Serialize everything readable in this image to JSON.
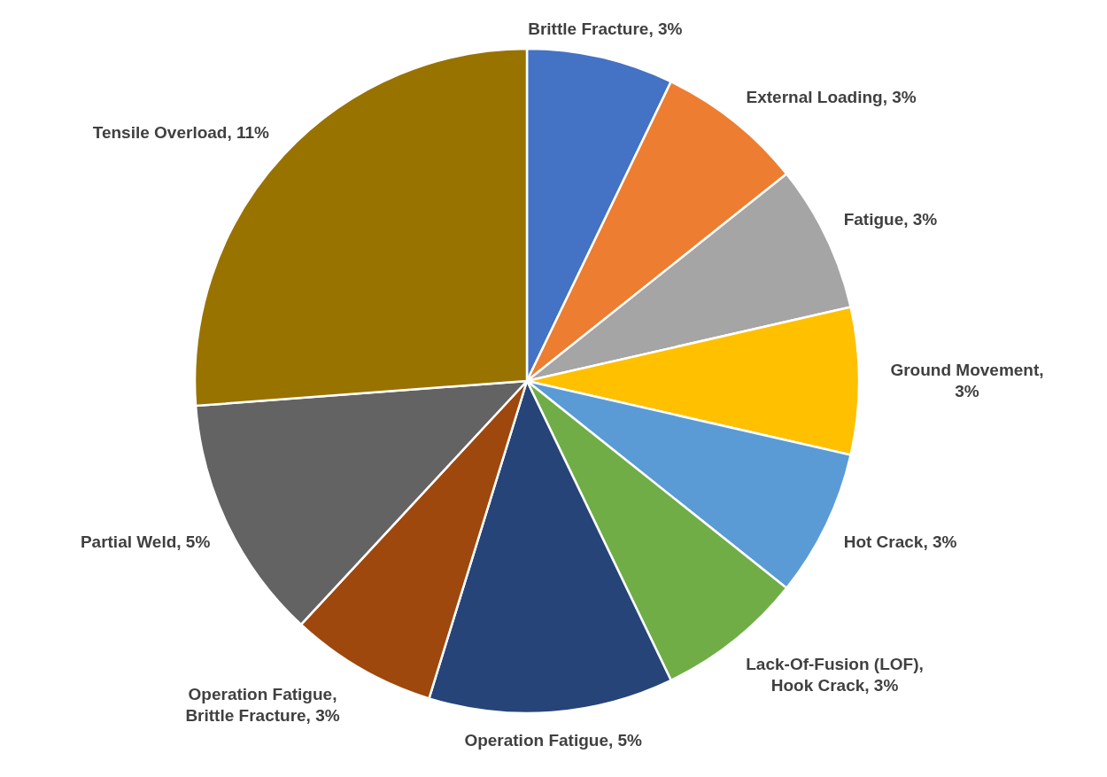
{
  "chart_data": {
    "type": "pie",
    "categories": [
      "Brittle Fracture, 3%",
      "External Loading, 3%",
      "Fatigue, 3%",
      "Ground Movement, 3%",
      "Hot Crack, 3%",
      "Lack-Of-Fusion (LOF), Hook Crack, 3%",
      "Operation Fatigue, 5%",
      "Operation Fatigue, Brittle Fracture, 3%",
      "Partial Weld, 5%",
      "Tensile Overload, 11%"
    ],
    "values": [
      3,
      3,
      3,
      3,
      3,
      3,
      5,
      3,
      5,
      11
    ],
    "colors": [
      "#4472c4",
      "#ed7d31",
      "#a5a5a5",
      "#ffc000",
      "#5b9bd5",
      "#70ad47",
      "#264478",
      "#9e480e",
      "#636363",
      "#997300"
    ]
  }
}
